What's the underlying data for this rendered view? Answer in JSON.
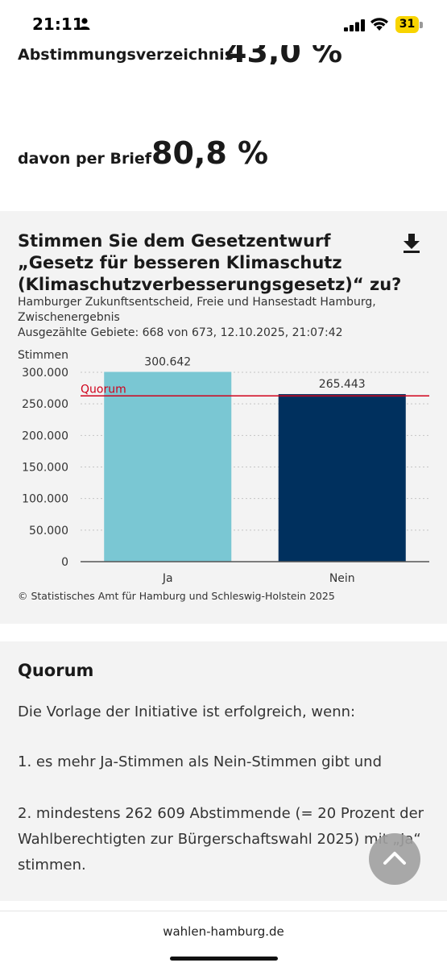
{
  "status": {
    "time": "21:11",
    "battery": "31"
  },
  "stats": {
    "partial_label": "Abstimmungsverzeichnis",
    "partial_value": "43,0 %",
    "brief_label": "davon per Brief",
    "brief_value": "80,8 %"
  },
  "chart_card": {
    "title": "Stimmen Sie dem Gesetzentwurf „Gesetz für besseren Klimaschutz (Klimaschutzverbesserungsgesetz)“ zu?",
    "subtitle_line1": "Hamburger Zukunftsentscheid, Freie und Hansestadt Hamburg,",
    "subtitle_line2": "Zwischenergebnis",
    "subtitle_line3": "Ausgezählte Gebiete: 668 von 673, 12.10.2025, 21:07:42",
    "source": "© Statistisches Amt für Hamburg und Schleswig-Holstein 2025"
  },
  "chart_data": {
    "type": "bar",
    "ylabel": "Stimmen",
    "categories": [
      "Ja",
      "Nein"
    ],
    "values": [
      300642,
      265443
    ],
    "value_labels": [
      "300.642",
      "265.443"
    ],
    "bar_colors": [
      "#7ac7d3",
      "#00305e"
    ],
    "ylim": [
      0,
      300000
    ],
    "yticks": [
      0,
      50000,
      100000,
      150000,
      200000,
      250000,
      300000
    ],
    "ytick_labels": [
      "0",
      "50.000",
      "100.000",
      "150.000",
      "200.000",
      "250.000",
      "300.000"
    ],
    "grid": true,
    "reference_line": {
      "label": "Quorum",
      "value": 262609,
      "color": "#d0021b"
    }
  },
  "quorum": {
    "title": "Quorum",
    "intro": "Die Vorlage der Initiative ist erfolgreich, wenn:",
    "condition1": "1. es mehr Ja-Stimmen als Nein-Stimmen gibt und",
    "condition2": "2. mindestens 262 609 Abstimmende (= 20 Prozent der Wahlberechtigten zur Bürgerschaftswahl 2025) mit „Ja“ stimmen."
  },
  "browser": {
    "url": "wahlen-hamburg.de"
  },
  "icons": {
    "person": "person-icon",
    "signal": "signal-icon",
    "wifi": "wifi-icon",
    "download": "download-icon",
    "scroll_top": "chevron-up-icon"
  }
}
